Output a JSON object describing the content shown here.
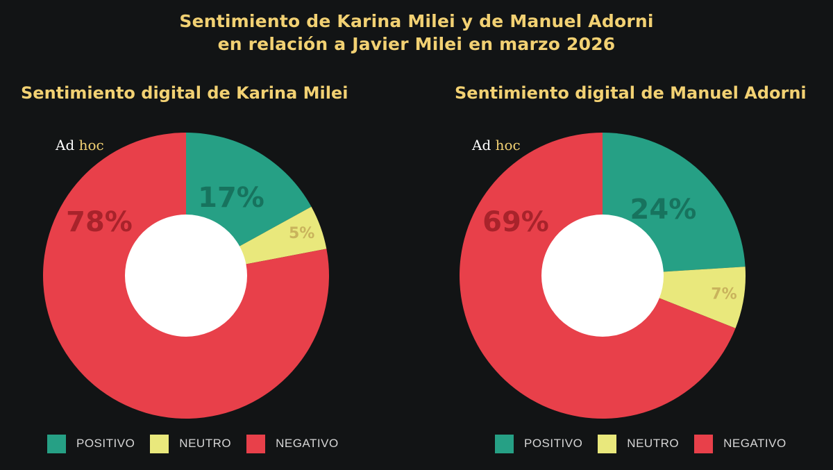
{
  "header": {
    "title_line1": "Sentimiento de Karina Milei y de Manuel Adorni",
    "title_line2": "en relación a Javier Milei en marzo 2026"
  },
  "logo": {
    "text": "Ad hoc"
  },
  "colors": {
    "background": "#121415",
    "title": "#f2d173",
    "positivo": "#26a085",
    "neutro": "#e9e87c",
    "negativo": "#e8404a"
  },
  "chart_data": [
    {
      "type": "pie",
      "title": "Sentimiento digital de Karina Milei",
      "categories": [
        "POSITIVO",
        "NEUTRO",
        "NEGATIVO"
      ],
      "values": [
        17,
        5,
        78
      ],
      "labels": [
        "17%",
        "5%",
        "78%"
      ],
      "donut": true,
      "legend": "bottom"
    },
    {
      "type": "pie",
      "title": "Sentimiento digital de Manuel Adorni",
      "categories": [
        "POSITIVO",
        "NEUTRO",
        "NEGATIVO"
      ],
      "values": [
        24,
        7,
        69
      ],
      "labels": [
        "24%",
        "7%",
        "69%"
      ],
      "donut": true,
      "legend": "bottom"
    }
  ]
}
